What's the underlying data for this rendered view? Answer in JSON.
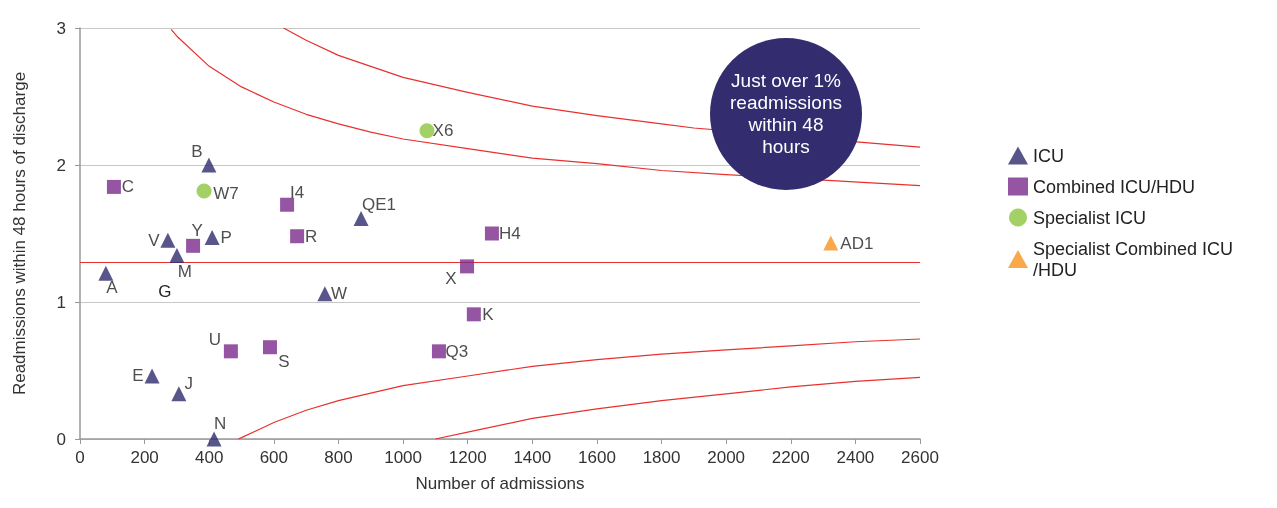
{
  "chart_data": {
    "type": "scatter",
    "xlabel": "Number of admissions",
    "ylabel": "Readmissions within 48 hours of discharge",
    "xlim": [
      0,
      2600
    ],
    "xticks": [
      0,
      200,
      400,
      600,
      800,
      1000,
      1200,
      1400,
      1600,
      1800,
      2000,
      2200,
      2400,
      2600
    ],
    "ylim": [
      0,
      3
    ],
    "yticks": [
      0,
      1,
      2,
      3
    ],
    "grid": "y",
    "legend": "right",
    "series": [
      {
        "name": "ICU",
        "color": "#2e2a6e",
        "marker": "triangle",
        "x": [
          80,
          399,
          272,
          300,
          409,
          870,
          758,
          223,
          306,
          415
        ],
        "values": [
          1.21,
          2.0,
          1.45,
          1.34,
          1.47,
          1.61,
          1.06,
          0.46,
          0.33,
          0.0
        ],
        "value_labels": [
          "A",
          "B",
          "V",
          "M",
          "P",
          "QE1",
          "W",
          "E",
          "J",
          "N"
        ]
      },
      {
        "name": "Combined ICU/HDU",
        "color": "#7b2a8c",
        "marker": "square",
        "x": [
          105,
          350,
          641,
          672,
          1275,
          1198,
          1219,
          467,
          588,
          1111
        ],
        "values": [
          1.84,
          1.41,
          1.71,
          1.48,
          1.5,
          1.26,
          0.91,
          0.64,
          0.67,
          0.64
        ],
        "value_labels": [
          "C",
          "Y",
          "I4",
          "R",
          "H4",
          "X",
          "K",
          "U",
          "S",
          "Q3"
        ]
      },
      {
        "name": "Specialist ICU",
        "color": "#8dc63f",
        "marker": "circle",
        "x": [
          1074,
          384
        ],
        "values": [
          2.25,
          1.81
        ],
        "value_labels": [
          "X6",
          "W7"
        ]
      },
      {
        "name": "Specialist Combined ICU/HDU",
        "color": "#f7941d",
        "marker": "triangle",
        "x": [
          2324
        ],
        "values": [
          1.43
        ],
        "value_labels": [
          "AD1"
        ]
      },
      {
        "type": "line",
        "color": "#e8312f",
        "marker": "none",
        "x": [
          282,
          300,
          400,
          500,
          600,
          700,
          800,
          900,
          1000,
          1200,
          1400,
          1600,
          1800,
          2000,
          2450,
          2600
        ],
        "values": [
          2.99,
          2.94,
          2.72,
          2.57,
          2.46,
          2.37,
          2.3,
          2.24,
          2.19,
          2.12,
          2.05,
          2.01,
          1.96,
          1.93,
          1.87,
          1.85
        ]
      },
      {
        "type": "line",
        "color": "#e8312f",
        "marker": "none",
        "x": [
          630,
          700,
          800,
          900,
          1000,
          1200,
          1400,
          1600,
          1800,
          1900,
          2450,
          2600
        ],
        "values": [
          3.0,
          2.91,
          2.8,
          2.72,
          2.64,
          2.53,
          2.43,
          2.36,
          2.3,
          2.27,
          2.16,
          2.13
        ]
      },
      {
        "type": "line",
        "color": "#e8312f",
        "marker": "none",
        "x": [
          490,
          500,
          600,
          700,
          800,
          1000,
          1200,
          1400,
          1600,
          1800,
          2000,
          2200,
          2400,
          2600
        ],
        "values": [
          0.0,
          0.01,
          0.12,
          0.21,
          0.28,
          0.39,
          0.46,
          0.53,
          0.58,
          0.62,
          0.65,
          0.68,
          0.71,
          0.73
        ]
      },
      {
        "type": "line",
        "color": "#e8312f",
        "marker": "none",
        "x": [
          1100,
          1200,
          1400,
          1600,
          1800,
          2000,
          2200,
          2400,
          2600
        ],
        "values": [
          0.0,
          0.05,
          0.15,
          0.22,
          0.28,
          0.33,
          0.38,
          0.42,
          0.45
        ]
      }
    ],
    "ref_lines": [
      {
        "axis": "y",
        "value": 1.29,
        "color": "#e8312f"
      }
    ],
    "annotations": [
      {
        "text": "G",
        "x": 300,
        "y": 1.34
      },
      "Just over 1% readmissions within 48 hours"
    ]
  }
}
